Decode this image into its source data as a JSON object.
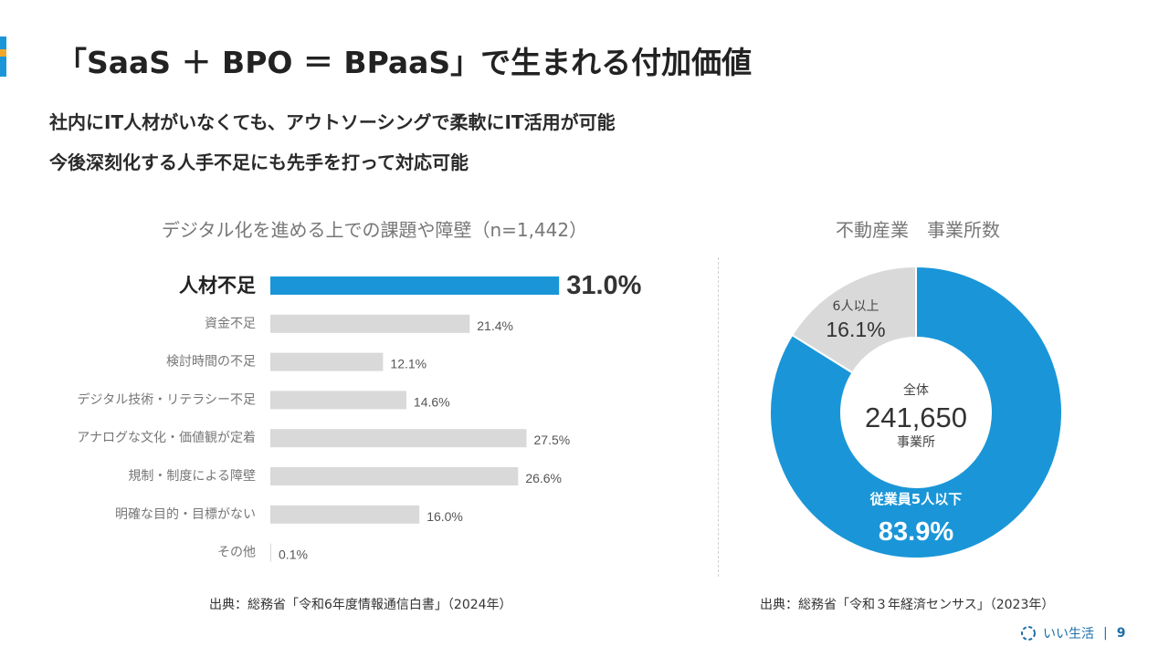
{
  "header": {
    "title": "「SaaS ＋ BPO ＝ BPaaS」で生まれる付加価値",
    "subtitle_1": "社内にIT人材がいなくても、アウトソーシングで柔軟にIT活用が可能",
    "subtitle_2": "今後深刻化する人手不足にも先手を打って対応可能"
  },
  "colors": {
    "accent_blue": "#1a96d8",
    "accent_orange": "#f2a72b",
    "bar_gray": "#d9d9d9",
    "donut_gray": "#d9d9d9"
  },
  "chart_data": [
    {
      "type": "bar",
      "orientation": "horizontal",
      "title": "デジタル化を進める上での課題や障壁（n=1,442）",
      "categories": [
        "人材不足",
        "資金不足",
        "検討時間の不足",
        "デジタル技術・リテラシー不足",
        "アナログな文化・価値観が定着",
        "規制・制度による障壁",
        "明確な目的・目標がない",
        "その他"
      ],
      "values": [
        31.0,
        21.4,
        12.1,
        14.6,
        27.5,
        26.6,
        16.0,
        0.1
      ],
      "value_labels": [
        "31.0%",
        "21.4%",
        "12.1%",
        "14.6%",
        "27.5%",
        "26.6%",
        "16.0%",
        "0.1%"
      ],
      "highlight_index": 0,
      "unit": "%",
      "source": "出典：総務省「令和6年度情報通信白書」（2024年）"
    },
    {
      "type": "pie",
      "style": "donut",
      "title": "不動産業　事業所数",
      "center_label": "全体",
      "center_value": "241,650",
      "center_unit": "事業所",
      "slices": [
        {
          "label": "従業員5人以下",
          "value": 83.9,
          "value_label": "83.9%",
          "color": "#1a96d8"
        },
        {
          "label": "6人以上",
          "value": 16.1,
          "value_label": "16.1%",
          "color": "#d9d9d9"
        }
      ],
      "source": "出典：総務省「令和３年経済センサス」（2023年）"
    }
  ],
  "footer": {
    "logo_text": "いい生活",
    "separator": "|",
    "page_number": "9"
  }
}
